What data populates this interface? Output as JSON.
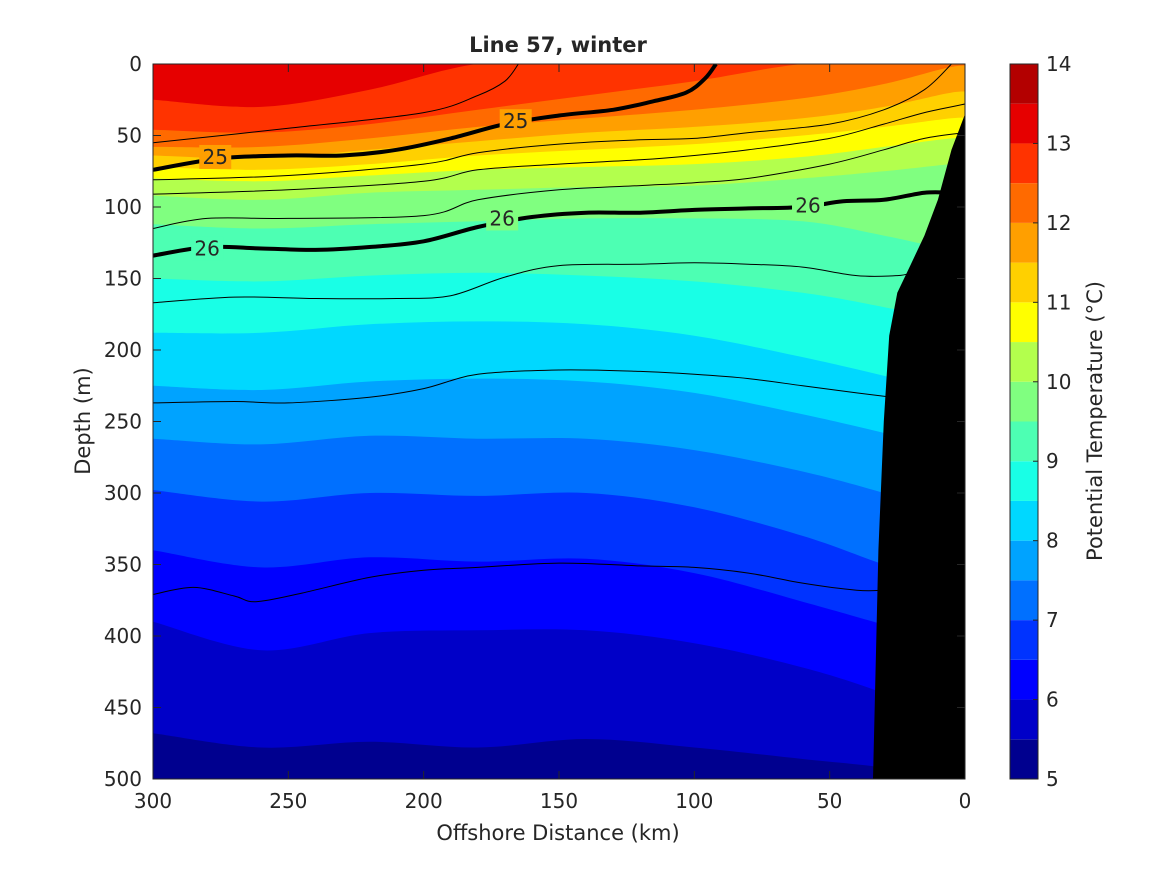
{
  "chart_data": {
    "type": "contour",
    "title": "Line 57, winter",
    "xlabel": "Offshore Distance (km)",
    "ylabel": "Depth (m)",
    "colorbar_label": "Potential Temperature (°C)",
    "x_range": [
      300,
      0
    ],
    "y_range": [
      0,
      500
    ],
    "x_ticks": [
      "300",
      "250",
      "200",
      "150",
      "100",
      "50",
      "0"
    ],
    "x_tick_values": [
      300,
      250,
      200,
      150,
      100,
      50,
      0
    ],
    "y_ticks": [
      "0",
      "50",
      "100",
      "150",
      "200",
      "250",
      "300",
      "350",
      "400",
      "450",
      "500"
    ],
    "y_tick_values": [
      0,
      50,
      100,
      150,
      200,
      250,
      300,
      350,
      400,
      450,
      500
    ],
    "colorbar_ticks": [
      "5",
      "6",
      "7",
      "8",
      "9",
      "10",
      "11",
      "12",
      "13",
      "14"
    ],
    "colorbar_tick_values": [
      5,
      6,
      7,
      8,
      9,
      10,
      11,
      12,
      13,
      14
    ],
    "temperature_levels": [
      5,
      5.5,
      6,
      6.5,
      7,
      7.5,
      8,
      8.5,
      9,
      9.5,
      10,
      10.5,
      11,
      11.5,
      12,
      12.5,
      13,
      13.5,
      14
    ],
    "level_colors": [
      "#00008f",
      "#0000c8",
      "#0000ff",
      "#0033ff",
      "#0070ff",
      "#00a3ff",
      "#00d8ff",
      "#19ffe6",
      "#4dffb3",
      "#80ff80",
      "#b3ff4d",
      "#ffff00",
      "#ffd000",
      "#ff9f00",
      "#ff6a00",
      "#ff3300",
      "#e60000",
      "#b30000"
    ],
    "temperature_isotherm_x": [
      300,
      260,
      220,
      180,
      140,
      100,
      60,
      30,
      5
    ],
    "temperature_isotherms": [
      {
        "t": 5.5,
        "depth": [
          468,
          478,
          474,
          478,
          472,
          478,
          486,
          492,
          500
        ]
      },
      {
        "t": 6,
        "depth": [
          390,
          410,
          398,
          396,
          396,
          405,
          422,
          440,
          460
        ]
      },
      {
        "t": 6.5,
        "depth": [
          340,
          352,
          345,
          348,
          346,
          356,
          376,
          392,
          405
        ]
      },
      {
        "t": 7,
        "depth": [
          298,
          306,
          300,
          302,
          300,
          310,
          330,
          350,
          365
        ]
      },
      {
        "t": 7.5,
        "depth": [
          262,
          266,
          260,
          262,
          262,
          270,
          285,
          300,
          315
        ]
      },
      {
        "t": 8,
        "depth": [
          225,
          228,
          222,
          220,
          222,
          230,
          245,
          258,
          270
        ]
      },
      {
        "t": 8.5,
        "depth": [
          188,
          188,
          182,
          180,
          182,
          190,
          205,
          218,
          230
        ]
      },
      {
        "t": 9,
        "depth": [
          150,
          152,
          148,
          146,
          148,
          152,
          160,
          170,
          180
        ]
      },
      {
        "t": 9.5,
        "depth": [
          112,
          115,
          112,
          110,
          108,
          108,
          110,
          120,
          130
        ]
      },
      {
        "t": 10,
        "depth": [
          92,
          95,
          90,
          88,
          86,
          85,
          80,
          75,
          70
        ]
      },
      {
        "t": 10.5,
        "depth": [
          80,
          82,
          78,
          74,
          72,
          70,
          65,
          58,
          52
        ]
      },
      {
        "t": 11,
        "depth": [
          72,
          74,
          70,
          64,
          60,
          56,
          50,
          44,
          38
        ]
      },
      {
        "t": 11.5,
        "depth": [
          64,
          66,
          60,
          54,
          48,
          44,
          38,
          30,
          20
        ]
      },
      {
        "t": 12,
        "depth": [
          58,
          58,
          52,
          44,
          38,
          32,
          24,
          14,
          2
        ]
      },
      {
        "t": 12.5,
        "depth": [
          46,
          48,
          42,
          32,
          22,
          12,
          0,
          0,
          0
        ]
      },
      {
        "t": 13,
        "depth": [
          25,
          30,
          18,
          0,
          0,
          0,
          0,
          0,
          0
        ]
      }
    ],
    "density_isopycnals": [
      {
        "label": "25",
        "bold": true,
        "labeled": true,
        "depth_at": [
          [
            300,
            74
          ],
          [
            275,
            66
          ],
          [
            250,
            64
          ],
          [
            230,
            64
          ],
          [
            210,
            60
          ],
          [
            190,
            52
          ],
          [
            170,
            42
          ],
          [
            150,
            36
          ],
          [
            130,
            32
          ],
          [
            115,
            26
          ],
          [
            103,
            20
          ],
          [
            96,
            10
          ],
          [
            92,
            0
          ]
        ],
        "label_positions": [
          [
            277,
            65
          ],
          [
            166,
            40
          ]
        ]
      },
      {
        "label": "26",
        "bold": true,
        "labeled": true,
        "depth_at": [
          [
            300,
            134
          ],
          [
            280,
            128
          ],
          [
            260,
            129
          ],
          [
            240,
            130
          ],
          [
            220,
            128
          ],
          [
            200,
            124
          ],
          [
            180,
            114
          ],
          [
            160,
            107
          ],
          [
            140,
            104
          ],
          [
            120,
            104
          ],
          [
            100,
            102
          ],
          [
            80,
            101
          ],
          [
            60,
            100
          ],
          [
            45,
            96
          ],
          [
            30,
            95
          ],
          [
            15,
            90
          ],
          [
            5,
            90
          ]
        ],
        "label_positions": [
          [
            280,
            129
          ],
          [
            171,
            108
          ],
          [
            58,
            99
          ]
        ]
      },
      {
        "label": "",
        "bold": false,
        "labeled": false,
        "depth_at": [
          [
            300,
            55
          ],
          [
            250,
            45
          ],
          [
            200,
            34
          ],
          [
            180,
            22
          ],
          [
            170,
            12
          ],
          [
            165,
            0
          ]
        ]
      },
      {
        "label": "",
        "bold": false,
        "labeled": false,
        "depth_at": [
          [
            300,
            81
          ],
          [
            250,
            78
          ],
          [
            200,
            70
          ],
          [
            180,
            62
          ],
          [
            150,
            56
          ],
          [
            120,
            53
          ],
          [
            100,
            52
          ],
          [
            80,
            48
          ],
          [
            50,
            42
          ],
          [
            30,
            32
          ],
          [
            15,
            18
          ],
          [
            5,
            0
          ]
        ]
      },
      {
        "label": "",
        "bold": false,
        "labeled": false,
        "depth_at": [
          [
            300,
            91
          ],
          [
            250,
            88
          ],
          [
            200,
            82
          ],
          [
            180,
            74
          ],
          [
            150,
            70
          ],
          [
            120,
            67
          ],
          [
            100,
            64
          ],
          [
            80,
            60
          ],
          [
            50,
            52
          ],
          [
            30,
            42
          ],
          [
            15,
            34
          ],
          [
            0,
            28
          ]
        ]
      },
      {
        "label": "",
        "bold": false,
        "labeled": false,
        "depth_at": [
          [
            300,
            115
          ],
          [
            280,
            108
          ],
          [
            250,
            108
          ],
          [
            200,
            106
          ],
          [
            180,
            95
          ],
          [
            150,
            88
          ],
          [
            120,
            85
          ],
          [
            100,
            83
          ],
          [
            80,
            80
          ],
          [
            50,
            70
          ],
          [
            30,
            60
          ],
          [
            15,
            52
          ],
          [
            0,
            48
          ]
        ]
      },
      {
        "label": "",
        "bold": false,
        "labeled": false,
        "depth_at": [
          [
            300,
            167
          ],
          [
            270,
            163
          ],
          [
            240,
            164
          ],
          [
            210,
            164
          ],
          [
            190,
            162
          ],
          [
            170,
            149
          ],
          [
            150,
            141
          ],
          [
            120,
            140
          ],
          [
            100,
            139
          ],
          [
            80,
            140
          ],
          [
            60,
            142
          ],
          [
            40,
            148
          ],
          [
            25,
            148
          ],
          [
            20,
            146
          ]
        ]
      },
      {
        "label": "",
        "bold": false,
        "labeled": false,
        "depth_at": [
          [
            300,
            237
          ],
          [
            270,
            236
          ],
          [
            250,
            237
          ],
          [
            220,
            233
          ],
          [
            200,
            227
          ],
          [
            180,
            217
          ],
          [
            150,
            214
          ],
          [
            120,
            215
          ],
          [
            100,
            217
          ],
          [
            80,
            220
          ],
          [
            60,
            225
          ],
          [
            40,
            230
          ],
          [
            27,
            233
          ]
        ]
      },
      {
        "label": "",
        "bold": false,
        "labeled": false,
        "depth_at": [
          [
            300,
            371
          ],
          [
            285,
            366
          ],
          [
            270,
            372
          ],
          [
            262,
            376
          ],
          [
            245,
            370
          ],
          [
            220,
            359
          ],
          [
            200,
            354
          ],
          [
            180,
            352
          ],
          [
            150,
            349
          ],
          [
            120,
            351
          ],
          [
            100,
            352
          ],
          [
            80,
            356
          ],
          [
            60,
            363
          ],
          [
            40,
            368
          ],
          [
            30,
            368
          ]
        ]
      }
    ],
    "bathymetry_km_depth": [
      [
        0,
        35
      ],
      [
        5,
        60
      ],
      [
        10,
        95
      ],
      [
        15,
        120
      ],
      [
        20,
        140
      ],
      [
        25,
        160
      ],
      [
        28,
        190
      ],
      [
        30,
        250
      ],
      [
        32,
        340
      ],
      [
        34,
        500
      ]
    ]
  }
}
